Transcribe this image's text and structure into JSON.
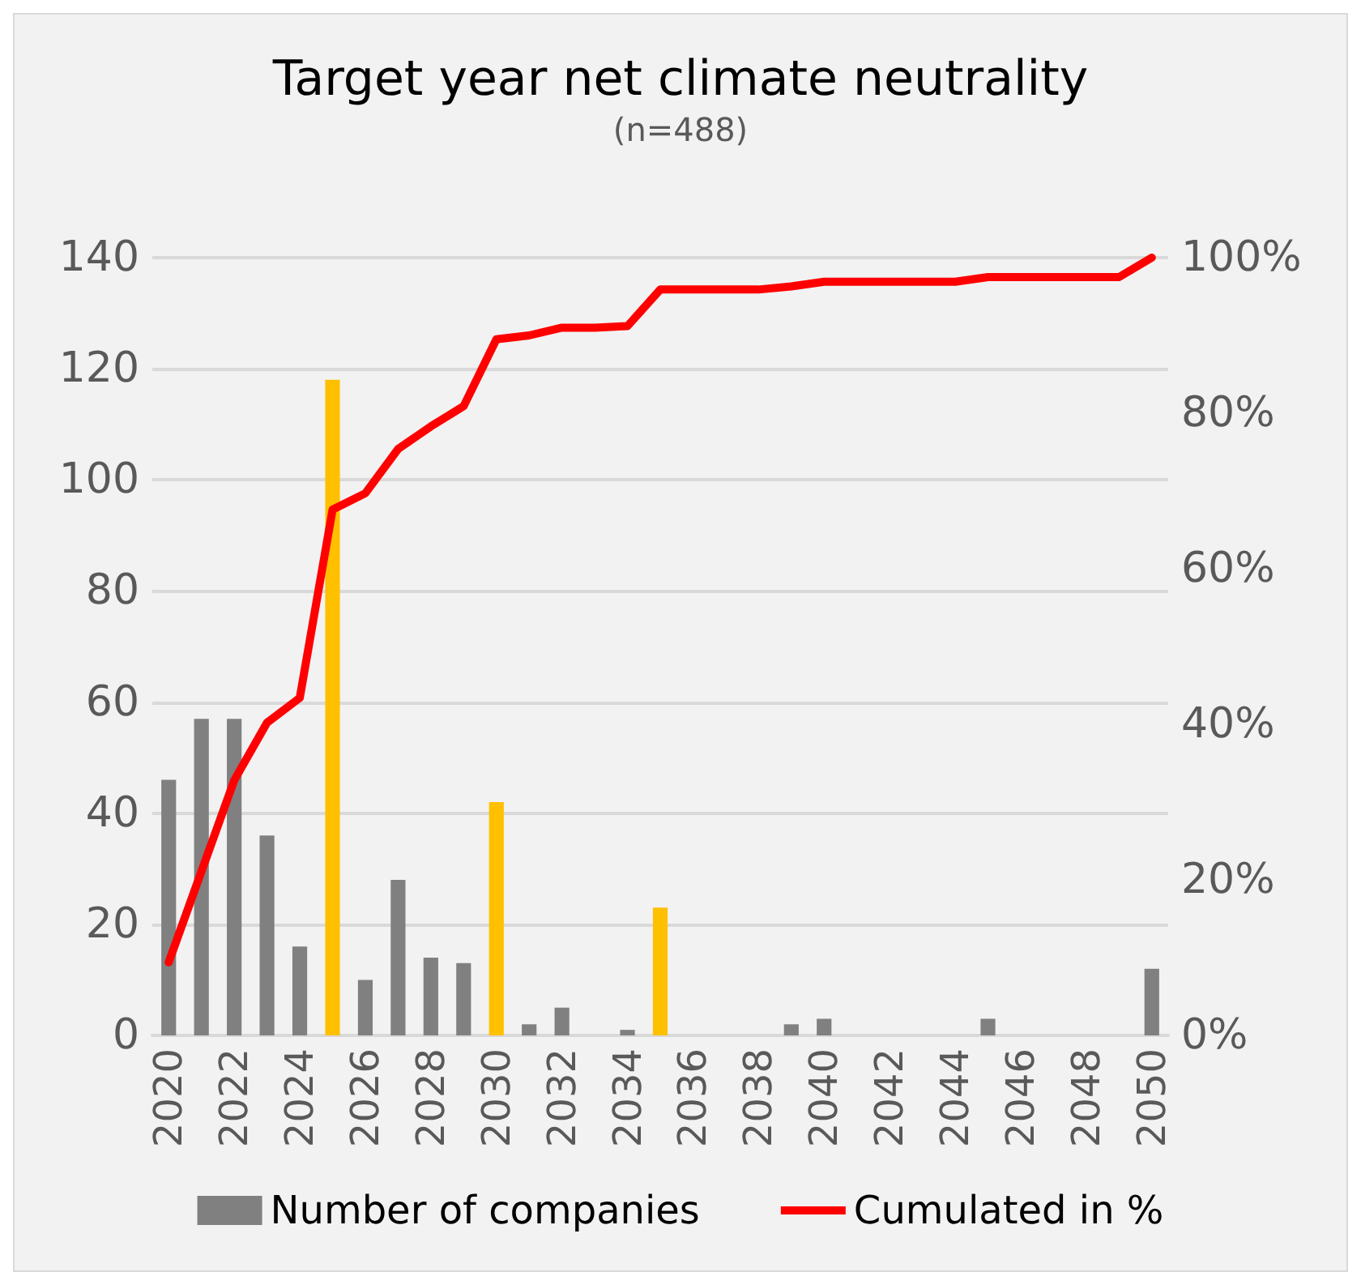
{
  "chart_data": {
    "type": "bar",
    "title": "Target year net climate neutrality",
    "subtitle": "(n=488)",
    "categories": [
      "2020",
      null,
      "2022",
      null,
      "2024",
      null,
      "2026",
      null,
      "2028",
      null,
      "2030",
      null,
      "2032",
      null,
      "2034",
      null,
      "2036",
      null,
      "2038",
      null,
      "2040",
      null,
      "2042",
      null,
      "2044",
      null,
      "2046",
      null,
      "2048",
      null,
      "2050"
    ],
    "series": [
      {
        "name": "Number of companies",
        "color": "#808080",
        "colors": [
          "#808080",
          "#808080",
          "#808080",
          "#808080",
          "#808080",
          "#ffc000",
          "#808080",
          "#808080",
          "#808080",
          "#808080",
          "#ffc000",
          "#808080",
          "#808080",
          "#808080",
          "#808080",
          "#ffc000",
          "#808080",
          "#808080",
          "#808080",
          "#808080",
          "#808080",
          "#808080",
          "#808080",
          "#808080",
          "#808080",
          "#808080",
          "#808080",
          "#808080",
          "#808080",
          "#808080",
          "#808080"
        ],
        "values": [
          46,
          57,
          57,
          36,
          16,
          118,
          10,
          28,
          14,
          13,
          42,
          2,
          5,
          0,
          1,
          23,
          0,
          0,
          0,
          2,
          3,
          0,
          0,
          0,
          0,
          3,
          0,
          0,
          0,
          0,
          12
        ]
      },
      {
        "name": "Cumulated in %",
        "type": "line",
        "axis": "y2",
        "color": "#ff0000",
        "values": [
          9.4,
          21.1,
          32.8,
          40.2,
          43.4,
          67.6,
          69.7,
          75.4,
          78.3,
          80.9,
          89.5,
          90.0,
          91.0,
          91.0,
          91.2,
          95.9,
          95.9,
          95.9,
          95.9,
          96.3,
          96.9,
          96.9,
          96.9,
          96.9,
          96.9,
          97.5,
          97.5,
          97.5,
          97.5,
          97.5,
          100
        ]
      }
    ],
    "ylim": [
      0,
      140
    ],
    "yticks": [
      0,
      20,
      40,
      60,
      80,
      100,
      120,
      140
    ],
    "y2lim": [
      0,
      100
    ],
    "y2ticks": [
      {
        "value": 0,
        "label": "0%"
      },
      {
        "value": 20,
        "label": "20%"
      },
      {
        "value": 40,
        "label": "40%"
      },
      {
        "value": 60,
        "label": "60%"
      },
      {
        "value": 80,
        "label": "80%"
      },
      {
        "value": 100,
        "label": "100%"
      }
    ],
    "grid": "y",
    "legend": "bottom",
    "marker": "none",
    "line_style": "solid"
  }
}
